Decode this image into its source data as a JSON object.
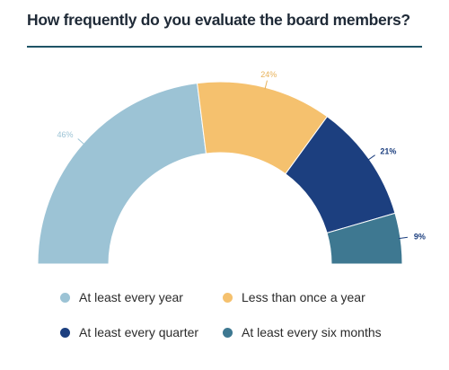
{
  "chart_data": {
    "type": "pie",
    "style": "semi-donut",
    "title": "How frequently do you evaluate the board members?",
    "categories": [
      "At least every year",
      "Less than once a year",
      "At least every quarter",
      "At least every six months"
    ],
    "values": [
      46,
      24,
      21,
      9
    ],
    "labels": [
      "46%",
      "24%",
      "21%",
      "9%"
    ],
    "colors": [
      "#9cc3d5",
      "#f5c16e",
      "#1c3f7f",
      "#3e7891"
    ],
    "label_colors": [
      "#9cc3d5",
      "#e8b25a",
      "#1c3f7f",
      "#1c3f7f"
    ],
    "legend": {
      "placement": "bottom",
      "items": [
        {
          "label": "At least every year",
          "color": "#9cc3d5"
        },
        {
          "label": "Less than once a year",
          "color": "#f5c16e"
        },
        {
          "label": "At least every quarter",
          "color": "#1c3f7f"
        },
        {
          "label": "At least every six months",
          "color": "#3e7891"
        }
      ]
    },
    "rule_color": "#1e5466"
  }
}
